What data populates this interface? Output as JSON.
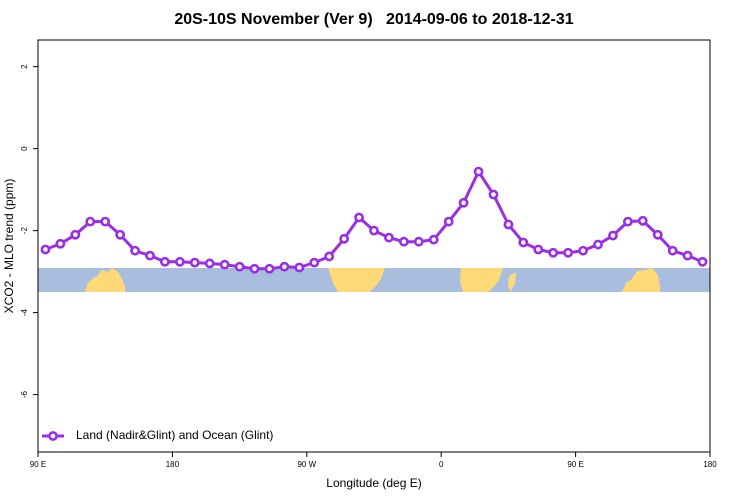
{
  "chart_data": {
    "type": "line",
    "title": "20S-10S November (Ver 9)   2014-09-06 to 2018-12-31",
    "xlabel": "Longitude (deg E)",
    "ylabel": "XCO2 - MLO trend (ppm)",
    "xlim": [
      90,
      540
    ],
    "ylim": [
      -7.4,
      2.65
    ],
    "xticks": [
      {
        "value": 90,
        "label": "90 E"
      },
      180,
      {
        "value": 270,
        "label": "90 W"
      },
      {
        "value": 360,
        "label": "0"
      },
      {
        "value": 450,
        "label": "90 E"
      },
      {
        "value": 540,
        "label": "180"
      }
    ],
    "yticks": [
      2,
      0,
      -2,
      -4,
      -6
    ],
    "legend": "bottomleft",
    "x": [
      95,
      105,
      115,
      125,
      135,
      145,
      155,
      165,
      175,
      185,
      195,
      205,
      215,
      225,
      235,
      245,
      255,
      265,
      275,
      285,
      295,
      305,
      315,
      325,
      335,
      345,
      355,
      365,
      375,
      385,
      395,
      405,
      415,
      425,
      435,
      445,
      455,
      465,
      475,
      485,
      495,
      505,
      515,
      525,
      535
    ],
    "series": [
      {
        "name": "Land (Nadir&Glint) and Ocean (Glint)",
        "color": "#9a2ee6",
        "values": [
          -2.46,
          -2.32,
          -2.1,
          -1.78,
          -1.78,
          -2.1,
          -2.49,
          -2.61,
          -2.76,
          -2.76,
          -2.78,
          -2.8,
          -2.83,
          -2.88,
          -2.93,
          -2.93,
          -2.88,
          -2.9,
          -2.78,
          -2.63,
          -2.2,
          -1.68,
          -2.0,
          -2.17,
          -2.27,
          -2.27,
          -2.22,
          -1.78,
          -1.32,
          -0.56,
          -1.12,
          -1.85,
          -2.29,
          -2.46,
          -2.54,
          -2.54,
          -2.49,
          -2.34,
          -2.12,
          -1.78,
          -1.76,
          -2.1,
          -2.49,
          -2.61,
          -2.76
        ]
      }
    ]
  }
}
